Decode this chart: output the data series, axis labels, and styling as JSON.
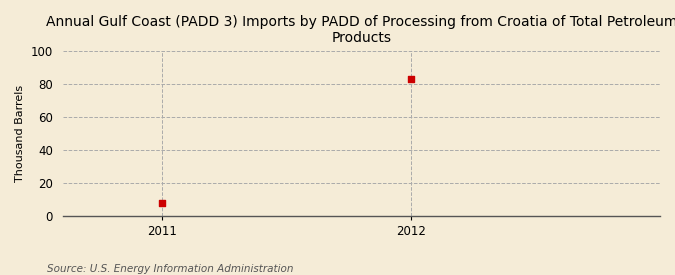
{
  "title": "Annual Gulf Coast (PADD 3) Imports by PADD of Processing from Croatia of Total Petroleum\nProducts",
  "ylabel": "Thousand Barrels",
  "source": "Source: U.S. Energy Information Administration",
  "x_values": [
    2011,
    2012
  ],
  "y_values": [
    8,
    83
  ],
  "xlim": [
    2010.6,
    2013.0
  ],
  "ylim": [
    0,
    100
  ],
  "yticks": [
    0,
    20,
    40,
    60,
    80,
    100
  ],
  "xticks": [
    2011,
    2012
  ],
  "background_color": "#f5ecd7",
  "plot_bg_color": "#f5ecd7",
  "marker_color": "#cc0000",
  "marker_size": 5,
  "grid_color": "#aaaaaa",
  "vline_color": "#aaaaaa",
  "title_fontsize": 10,
  "ylabel_fontsize": 8,
  "tick_fontsize": 8.5,
  "source_fontsize": 7.5
}
